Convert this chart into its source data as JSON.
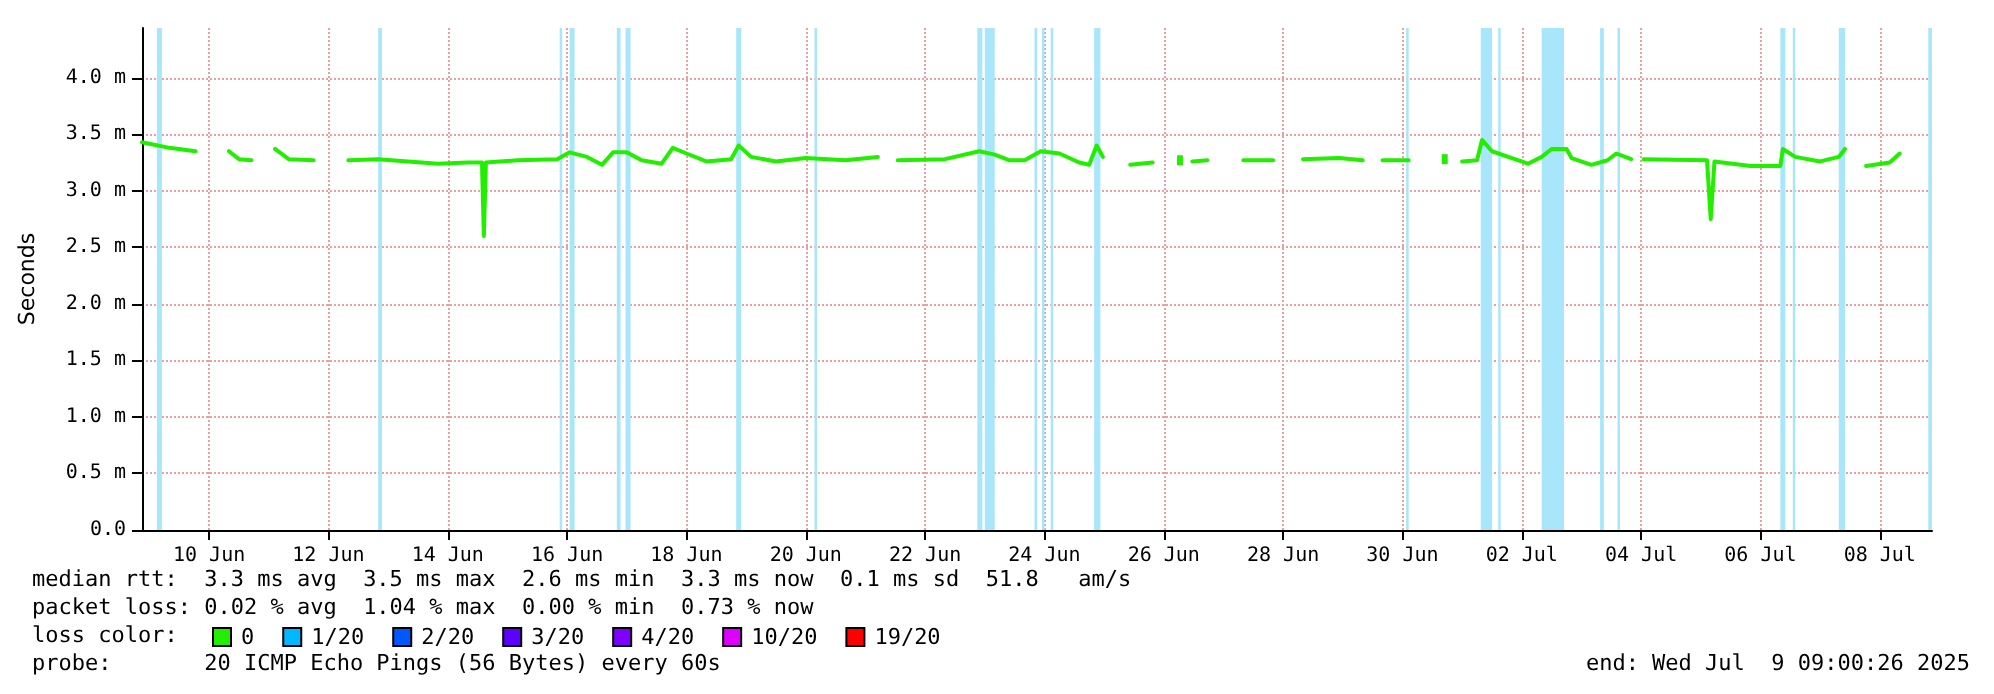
{
  "chart_data": {
    "type": "line",
    "ylabel": "Seconds",
    "legend_title": "loss color:",
    "annotations": [
      "median rtt:  3.3 ms avg  3.5 ms max  2.6 ms min  3.3 ms now  0.1 ms sd  51.8   am/s",
      "packet loss: 0.02 % avg  1.04 % max  0.00 % min  0.73 % now",
      "probe:       20 ICMP Echo Pings (56 Bytes) every 60s",
      "end: Wed Jul  9 09:00:26 2025"
    ],
    "x": [
      "2025-06-09T09:00",
      "2025-06-09T20:00",
      "2025-06-10T06:30",
      "2025-06-10T12:00",
      "2025-06-10T20:00",
      "2025-06-11T00:00",
      "2025-06-11T05:00",
      "2025-06-11T10:00",
      "2025-06-11T14:30",
      "2025-06-11T20:00",
      "2025-06-12T06:00",
      "2025-06-12T12:00",
      "2025-06-12T20:00",
      "2025-06-13T08:00",
      "2025-06-13T20:00",
      "2025-06-14T08:00",
      "2025-06-14T20:00",
      "2025-06-15T01:45",
      "2025-06-15T02:30",
      "2025-06-15T03:20",
      "2025-06-15T16:00",
      "2025-06-16T08:00",
      "2025-06-16T13:00",
      "2025-06-16T20:00",
      "2025-06-17T02:00",
      "2025-06-17T06:30",
      "2025-06-17T12:00",
      "2025-06-17T18:00",
      "2025-06-18T02:00",
      "2025-06-18T06:30",
      "2025-06-18T12:00",
      "2025-06-18T20:00",
      "2025-06-19T06:00",
      "2025-06-19T09:00",
      "2025-06-19T14:00",
      "2025-06-20T00:00",
      "2025-06-20T12:00",
      "2025-06-21T04:00",
      "2025-06-21T17:00",
      "2025-06-21T21:00",
      "2025-06-22T01:00",
      "2025-06-22T20:00",
      "2025-06-23T09:45",
      "2025-06-23T16:00",
      "2025-06-23T22:00",
      "2025-06-24T04:00",
      "2025-06-24T10:30",
      "2025-06-24T18:00",
      "2025-06-25T02:00",
      "2025-06-25T06:00",
      "2025-06-25T09:00",
      "2025-06-25T11:30",
      "2025-06-25T16:00",
      "2025-06-25T22:30",
      "2025-06-26T07:30",
      "2025-06-26T12:00",
      "2025-06-26T18:30",
      "2025-06-26T22:00",
      "2025-06-26T23:30",
      "2025-06-27T05:30",
      "2025-06-27T10:00",
      "2025-06-27T20:00",
      "2025-06-28T08:00",
      "2025-06-28T14:00",
      "2025-06-28T20:00",
      "2025-06-29T10:30",
      "2025-06-29T20:00",
      "2025-06-30T00:00",
      "2025-06-30T04:00",
      "2025-06-30T14:30",
      "2025-06-30T20:00",
      "2025-07-01T05:00",
      "2025-07-01T08:00",
      "2025-07-01T12:00",
      "2025-07-01T18:00",
      "2025-07-01T20:00",
      "2025-07-02T00:00",
      "2025-07-02T08:00",
      "2025-07-02T14:30",
      "2025-07-02T20:00",
      "2025-07-03T00:00",
      "2025-07-03T06:00",
      "2025-07-03T08:00",
      "2025-07-03T16:00",
      "2025-07-03T22:30",
      "2025-07-04T02:00",
      "2025-07-04T08:00",
      "2025-07-04T12:00",
      "2025-07-04T13:00",
      "2025-07-05T14:30",
      "2025-07-05T16:00",
      "2025-07-05T17:30",
      "2025-07-06T08:00",
      "2025-07-06T20:00",
      "2025-07-06T21:00",
      "2025-07-07T02:00",
      "2025-07-07T12:00",
      "2025-07-07T19:30",
      "2025-07-07T22:00",
      "2025-07-08T02:00",
      "2025-07-08T06:30",
      "2025-07-08T16:00",
      "2025-07-08T20:00"
    ],
    "series": [
      {
        "name": "0",
        "color": "#22ee00",
        "values": [
          3.43,
          3.38,
          3.35,
          null,
          3.35,
          3.28,
          3.27,
          null,
          3.37,
          3.28,
          3.27,
          null,
          3.27,
          3.28,
          3.26,
          3.24,
          3.25,
          3.25,
          2.6,
          3.25,
          3.27,
          3.28,
          3.34,
          3.3,
          3.23,
          3.34,
          3.34,
          3.27,
          3.24,
          3.38,
          3.33,
          3.26,
          3.28,
          3.4,
          3.3,
          3.26,
          3.29,
          3.27,
          3.3,
          null,
          3.27,
          3.28,
          3.35,
          3.32,
          3.27,
          3.27,
          3.35,
          3.33,
          3.25,
          3.23,
          3.4,
          3.3,
          null,
          3.23,
          3.25,
          null,
          3.27,
          null,
          3.26,
          3.27,
          null,
          3.27,
          3.27,
          null,
          3.28,
          3.29,
          3.27,
          null,
          3.27,
          3.27,
          null,
          3.28,
          null,
          3.26,
          3.27,
          3.45,
          3.35,
          3.29,
          3.24,
          3.3,
          3.37,
          3.37,
          3.29,
          3.23,
          3.27,
          3.33,
          3.28,
          null,
          3.28,
          3.27,
          2.75,
          3.26,
          3.22,
          3.22,
          3.37,
          3.3,
          3.26,
          3.3,
          3.37,
          null,
          3.22,
          3.25,
          3.33
        ]
      },
      {
        "name": "1/20",
        "color": "#00b8ff",
        "values": [
          null,
          null,
          null,
          null,
          null,
          null,
          null,
          null,
          null,
          null,
          null,
          null,
          null,
          null,
          null,
          null,
          null,
          null,
          null,
          null,
          null,
          null,
          null,
          null,
          null,
          null,
          null,
          null,
          null,
          null,
          null,
          null,
          null,
          null,
          null,
          null,
          null,
          null,
          null,
          null,
          null,
          null,
          null,
          null,
          null,
          null,
          null,
          null,
          null,
          null,
          null,
          null,
          null,
          null,
          null,
          null,
          null,
          null,
          null,
          null,
          null,
          null,
          null,
          null,
          null,
          null,
          null,
          null,
          null,
          null,
          null,
          null,
          null,
          null,
          null,
          null,
          null,
          null,
          null,
          null,
          null,
          null,
          null,
          null,
          null,
          null,
          null,
          null,
          null,
          null,
          null,
          null,
          null,
          null,
          null,
          null,
          null,
          null,
          null,
          null,
          null,
          null,
          null
        ]
      },
      {
        "name": "2/20",
        "color": "#0059ff",
        "values": [
          null,
          null,
          null,
          null,
          null,
          null,
          null,
          null,
          null,
          null,
          null,
          null,
          null,
          null,
          null,
          null,
          null,
          null,
          null,
          null,
          null,
          null,
          null,
          null,
          null,
          null,
          null,
          null,
          null,
          null,
          null,
          null,
          null,
          null,
          null,
          null,
          null,
          null,
          null,
          null,
          null,
          null,
          null,
          null,
          null,
          null,
          null,
          null,
          null,
          null,
          null,
          null,
          null,
          null,
          null,
          null,
          null,
          null,
          null,
          null,
          null,
          null,
          null,
          null,
          null,
          null,
          null,
          null,
          null,
          null,
          null,
          null,
          null,
          null,
          null,
          null,
          null,
          null,
          null,
          null,
          null,
          null,
          null,
          null,
          null,
          null,
          null,
          null,
          null,
          null,
          null,
          null,
          null,
          null,
          null,
          null,
          null,
          null,
          null,
          null,
          null,
          null,
          null
        ]
      },
      {
        "name": "3/20",
        "color": "#5e00ff",
        "values": [
          null,
          null,
          null,
          null,
          null,
          null,
          null,
          null,
          null,
          null,
          null,
          null,
          null,
          null,
          null,
          null,
          null,
          null,
          null,
          null,
          null,
          null,
          null,
          null,
          null,
          null,
          null,
          null,
          null,
          null,
          null,
          null,
          null,
          null,
          null,
          null,
          null,
          null,
          null,
          null,
          null,
          null,
          null,
          null,
          null,
          null,
          null,
          null,
          null,
          null,
          null,
          null,
          null,
          null,
          null,
          null,
          null,
          null,
          null,
          null,
          null,
          null,
          null,
          null,
          null,
          null,
          null,
          null,
          null,
          null,
          null,
          null,
          null,
          null,
          null,
          null,
          null,
          null,
          null,
          null,
          null,
          null,
          null,
          null,
          null,
          null,
          null,
          null,
          null,
          null,
          null,
          null,
          null,
          null,
          null,
          null,
          null,
          null,
          null,
          null,
          null,
          null,
          null
        ]
      },
      {
        "name": "4/20",
        "color": "#7e00ff",
        "values": [
          null,
          null,
          null,
          null,
          null,
          null,
          null,
          null,
          null,
          null,
          null,
          null,
          null,
          null,
          null,
          null,
          null,
          null,
          null,
          null,
          null,
          null,
          null,
          null,
          null,
          null,
          null,
          null,
          null,
          null,
          null,
          null,
          null,
          null,
          null,
          null,
          null,
          null,
          null,
          null,
          null,
          null,
          null,
          null,
          null,
          null,
          null,
          null,
          null,
          null,
          null,
          null,
          null,
          null,
          null,
          null,
          null,
          null,
          null,
          null,
          null,
          null,
          null,
          null,
          null,
          null,
          null,
          null,
          null,
          null,
          null,
          null,
          null,
          null,
          null,
          null,
          null,
          null,
          null,
          null,
          null,
          null,
          null,
          null,
          null,
          null,
          null,
          null,
          null,
          null,
          null,
          null,
          null,
          null,
          null,
          null,
          null,
          null,
          null,
          null,
          null,
          null,
          null
        ]
      },
      {
        "name": "10/20",
        "color": "#dd00ff",
        "values": [
          null,
          null,
          null,
          null,
          null,
          null,
          null,
          null,
          null,
          null,
          null,
          null,
          null,
          null,
          null,
          null,
          null,
          null,
          null,
          null,
          null,
          null,
          null,
          null,
          null,
          null,
          null,
          null,
          null,
          null,
          null,
          null,
          null,
          null,
          null,
          null,
          null,
          null,
          null,
          null,
          null,
          null,
          null,
          null,
          null,
          null,
          null,
          null,
          null,
          null,
          null,
          null,
          null,
          null,
          null,
          null,
          null,
          null,
          null,
          null,
          null,
          null,
          null,
          null,
          null,
          null,
          null,
          null,
          null,
          null,
          null,
          null,
          null,
          null,
          null,
          null,
          null,
          null,
          null,
          null,
          null,
          null,
          null,
          null,
          null,
          null,
          null,
          null,
          null,
          null,
          null,
          null,
          null,
          null,
          null,
          null,
          null,
          null,
          null,
          null,
          null,
          null,
          null
        ]
      },
      {
        "name": "19/20",
        "color": "#ff0000",
        "values": [
          null,
          null,
          null,
          null,
          null,
          null,
          null,
          null,
          null,
          null,
          null,
          null,
          null,
          null,
          null,
          null,
          null,
          null,
          null,
          null,
          null,
          null,
          null,
          null,
          null,
          null,
          null,
          null,
          null,
          null,
          null,
          null,
          null,
          null,
          null,
          null,
          null,
          null,
          null,
          null,
          null,
          null,
          null,
          null,
          null,
          null,
          null,
          null,
          null,
          null,
          null,
          null,
          null,
          null,
          null,
          null,
          null,
          null,
          null,
          null,
          null,
          null,
          null,
          null,
          null,
          null,
          null,
          null,
          null,
          null,
          null,
          null,
          null,
          null,
          null,
          null,
          null,
          null,
          null,
          null,
          null,
          null,
          null,
          null,
          null,
          null,
          null,
          null,
          null,
          null,
          null,
          null,
          null,
          null,
          null,
          null,
          null,
          null,
          null,
          null,
          null,
          null,
          null
        ]
      }
    ],
    "bands": [
      {
        "axis": "x",
        "from": "2025-06-09T15:00",
        "to": "2025-06-09T17:00",
        "color": "#a8e6fb"
      },
      {
        "axis": "x",
        "from": "2025-06-13T08:00",
        "to": "2025-06-13T09:30",
        "color": "#a8e6fb"
      },
      {
        "axis": "x",
        "from": "2025-06-16T09:00",
        "to": "2025-06-16T10:00",
        "color": "#a8e6fb"
      },
      {
        "axis": "x",
        "from": "2025-06-16T13:00",
        "to": "2025-06-16T15:00",
        "color": "#a8e6fb"
      },
      {
        "axis": "x",
        "from": "2025-06-17T08:00",
        "to": "2025-06-17T09:30",
        "color": "#a8e6fb"
      },
      {
        "axis": "x",
        "from": "2025-06-17T11:30",
        "to": "2025-06-17T13:30",
        "color": "#a8e6fb"
      },
      {
        "axis": "x",
        "from": "2025-06-19T08:00",
        "to": "2025-06-19T10:00",
        "color": "#a8e6fb"
      },
      {
        "axis": "x",
        "from": "2025-06-20T15:30",
        "to": "2025-06-20T16:30",
        "color": "#a8e6fb"
      },
      {
        "axis": "x",
        "from": "2025-06-23T09:00",
        "to": "2025-06-23T11:00",
        "color": "#a8e6fb"
      },
      {
        "axis": "x",
        "from": "2025-06-23T12:00",
        "to": "2025-06-23T16:00",
        "color": "#a8e6fb"
      },
      {
        "axis": "x",
        "from": "2025-06-24T08:00",
        "to": "2025-06-24T09:00",
        "color": "#a8e6fb"
      },
      {
        "axis": "x",
        "from": "2025-06-24T11:00",
        "to": "2025-06-24T12:00",
        "color": "#a8e6fb"
      },
      {
        "axis": "x",
        "from": "2025-06-24T14:30",
        "to": "2025-06-24T15:30",
        "color": "#a8e6fb"
      },
      {
        "axis": "x",
        "from": "2025-06-25T08:00",
        "to": "2025-06-25T10:30",
        "color": "#a8e6fb"
      },
      {
        "axis": "x",
        "from": "2025-06-30T13:30",
        "to": "2025-06-30T14:30",
        "color": "#a8e6fb"
      },
      {
        "axis": "x",
        "from": "2025-07-01T19:30",
        "to": "2025-07-02T00:00",
        "color": "#a8e6fb"
      },
      {
        "axis": "x",
        "from": "2025-07-02T02:30",
        "to": "2025-07-02T03:30",
        "color": "#a8e6fb"
      },
      {
        "axis": "x",
        "from": "2025-07-02T20:00",
        "to": "2025-07-03T05:00",
        "color": "#a8e6fb"
      },
      {
        "axis": "x",
        "from": "2025-07-03T19:30",
        "to": "2025-07-03T21:00",
        "color": "#a8e6fb"
      },
      {
        "axis": "x",
        "from": "2025-07-04T02:30",
        "to": "2025-07-04T03:30",
        "color": "#a8e6fb"
      },
      {
        "axis": "x",
        "from": "2025-07-06T20:00",
        "to": "2025-07-06T22:00",
        "color": "#a8e6fb"
      },
      {
        "axis": "x",
        "from": "2025-07-07T01:00",
        "to": "2025-07-07T02:00",
        "color": "#a8e6fb"
      },
      {
        "axis": "x",
        "from": "2025-07-07T19:30",
        "to": "2025-07-07T22:00",
        "color": "#a8e6fb"
      },
      {
        "axis": "x",
        "from": "2025-07-09T07:30",
        "to": "2025-07-09T09:00",
        "color": "#a8e6fb"
      }
    ],
    "xlim": [
      "2025-06-09T09:00",
      "2025-07-09T09:00"
    ],
    "xticks": [
      {
        "value": "2025-06-10T12:00",
        "label": "10 Jun"
      },
      {
        "value": "2025-06-12T12:00",
        "label": "12 Jun"
      },
      {
        "value": "2025-06-14T12:00",
        "label": "14 Jun"
      },
      {
        "value": "2025-06-16T12:00",
        "label": "16 Jun"
      },
      {
        "value": "2025-06-18T12:00",
        "label": "18 Jun"
      },
      {
        "value": "2025-06-20T12:00",
        "label": "20 Jun"
      },
      {
        "value": "2025-06-22T12:00",
        "label": "22 Jun"
      },
      {
        "value": "2025-06-24T12:00",
        "label": "24 Jun"
      },
      {
        "value": "2025-06-26T12:00",
        "label": "26 Jun"
      },
      {
        "value": "2025-06-28T12:00",
        "label": "28 Jun"
      },
      {
        "value": "2025-06-30T12:00",
        "label": "30 Jun"
      },
      {
        "value": "2025-07-02T12:00",
        "label": "02 Jul"
      },
      {
        "value": "2025-07-04T12:00",
        "label": "04 Jul"
      },
      {
        "value": "2025-07-06T12:00",
        "label": "06 Jul"
      },
      {
        "value": "2025-07-08T12:00",
        "label": "08 Jul"
      }
    ],
    "ylim": [
      0,
      4.44
    ],
    "yticks": [
      {
        "value": 0,
        "label": "0.0"
      },
      {
        "value": 0.5,
        "label": "0.5 m"
      },
      {
        "value": 1,
        "label": "1.0 m"
      },
      {
        "value": 1.5,
        "label": "1.5 m"
      },
      {
        "value": 2,
        "label": "2.0 m"
      },
      {
        "value": 2.5,
        "label": "2.5 m"
      },
      {
        "value": 3,
        "label": "3.0 m"
      },
      {
        "value": 3.5,
        "label": "3.5 m"
      },
      {
        "value": 4,
        "label": "4.0 m"
      }
    ],
    "grid": true,
    "legend": "bottom",
    "line_style": "solid"
  }
}
